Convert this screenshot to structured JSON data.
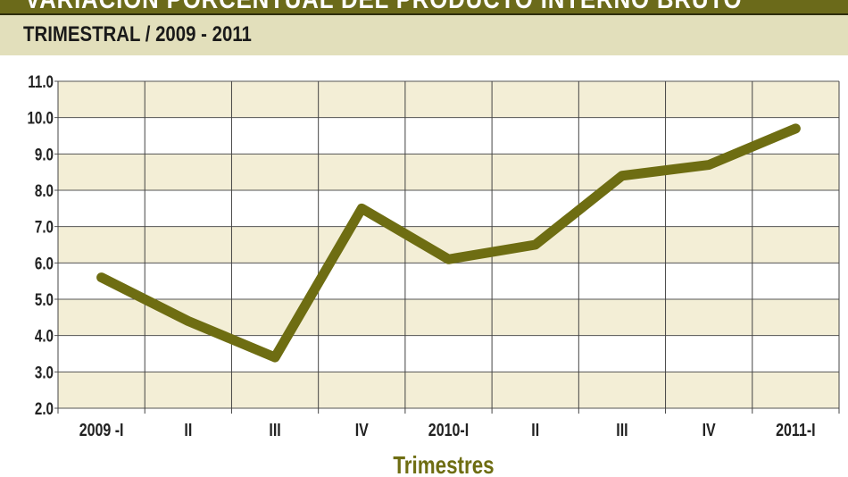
{
  "header": {
    "title": "VARIACIÓN PORCENTUAL DEL PRODUCTO INTERNO BRUTO",
    "subtitle": "TRIMESTRAL / 2009 - 2011"
  },
  "colors": {
    "header": "#6b6a1a",
    "subheader": "#e2dfbb",
    "band": "#f3eed6",
    "line": "#6e6d12",
    "axis_title": "#6e6d12"
  },
  "chart_data": {
    "type": "line",
    "title": "VARIACIÓN PORCENTUAL DEL PRODUCTO INTERNO BRUTO",
    "subtitle": "TRIMESTRAL / 2009 - 2011",
    "xlabel": "Trimestres",
    "ylabel": "",
    "categories": [
      "2009 -I",
      "II",
      "III",
      "IV",
      "2010-I",
      "II",
      "III",
      "IV",
      "2011-I"
    ],
    "values": [
      5.6,
      4.4,
      3.4,
      7.5,
      6.1,
      6.5,
      8.4,
      8.7,
      9.7
    ],
    "ylim": [
      2.0,
      11.0
    ],
    "yticks": [
      "2.0",
      "3.0",
      "4.0",
      "5.0",
      "6.0",
      "7.0",
      "8.0",
      "9.0",
      "10.0",
      "11.0"
    ],
    "grid": true,
    "legend": "none"
  }
}
